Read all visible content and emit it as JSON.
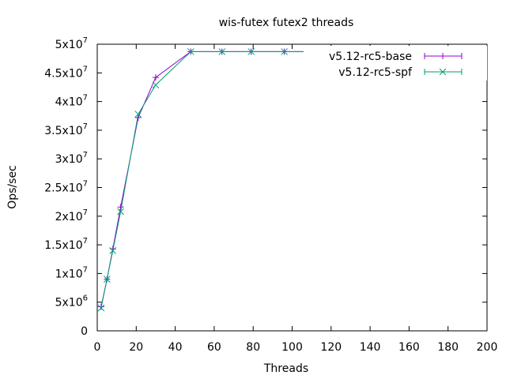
{
  "chart_data": {
    "type": "line",
    "title": "wis-futex futex2 threads",
    "xlabel": "Threads",
    "ylabel": "Ops/sec",
    "xlim": [
      0,
      200
    ],
    "ylim": [
      0,
      50000000
    ],
    "x_ticks": [
      0,
      20,
      40,
      60,
      80,
      100,
      120,
      140,
      160,
      180,
      200
    ],
    "y_ticks": [
      {
        "value": 0,
        "mantissa": "0",
        "exponent": ""
      },
      {
        "value": 5000000,
        "mantissa": "5x10",
        "exponent": "6"
      },
      {
        "value": 10000000,
        "mantissa": "1x10",
        "exponent": "7"
      },
      {
        "value": 15000000,
        "mantissa": "1.5x10",
        "exponent": "7"
      },
      {
        "value": 20000000,
        "mantissa": "2x10",
        "exponent": "7"
      },
      {
        "value": 25000000,
        "mantissa": "2.5x10",
        "exponent": "7"
      },
      {
        "value": 30000000,
        "mantissa": "3x10",
        "exponent": "7"
      },
      {
        "value": 35000000,
        "mantissa": "3.5x10",
        "exponent": "7"
      },
      {
        "value": 40000000,
        "mantissa": "4x10",
        "exponent": "7"
      },
      {
        "value": 45000000,
        "mantissa": "4.5x10",
        "exponent": "7"
      },
      {
        "value": 50000000,
        "mantissa": "5x10",
        "exponent": "7"
      }
    ],
    "grid": false,
    "legend_position": "top-right",
    "series": [
      {
        "name": "v5.12-rc5-base",
        "color": "#9400d3",
        "marker": "plus",
        "x": [
          2,
          5,
          8,
          12,
          21,
          30,
          48,
          64,
          79,
          96,
          110,
          128,
          142,
          160,
          172,
          192
        ],
        "y": [
          4200000,
          9000000,
          14300000,
          21600000,
          37200000,
          44200000,
          48700000,
          48700000,
          48700000,
          48700000,
          48700000,
          48700000,
          48700000,
          48700000,
          48700000,
          48700000
        ]
      },
      {
        "name": "v5.12-rc5-spf",
        "color": "#009e73",
        "marker": "cross",
        "x": [
          2,
          5,
          8,
          12,
          21,
          30,
          48,
          64,
          79,
          96,
          110,
          128,
          142,
          160,
          172,
          192
        ],
        "y": [
          4000000,
          9000000,
          14000000,
          20800000,
          37800000,
          42900000,
          48700000,
          48700000,
          48700000,
          48700000,
          48700000,
          48700000,
          48700000,
          48700000,
          48700000,
          48700000
        ]
      }
    ]
  }
}
